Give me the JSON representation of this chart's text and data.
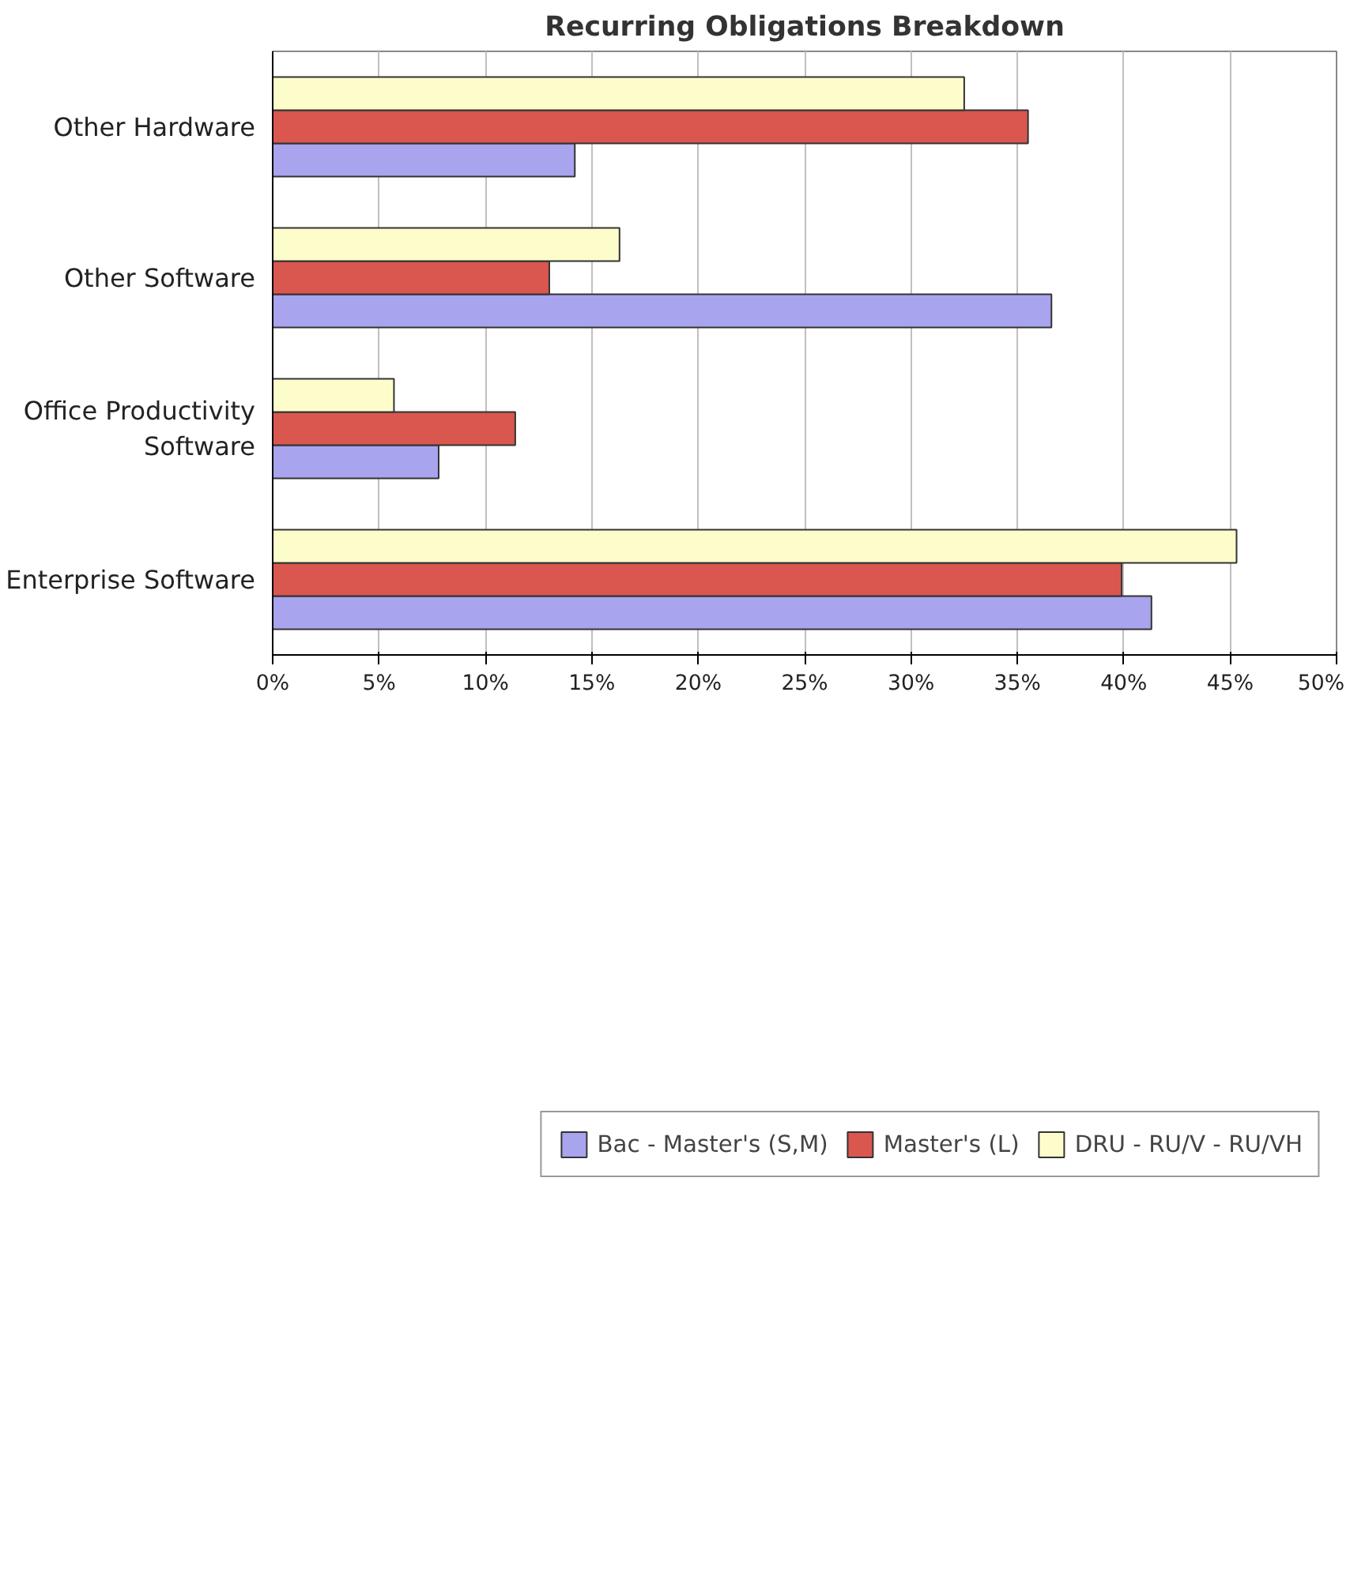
{
  "chart_data": {
    "type": "bar",
    "orientation": "horizontal",
    "title": "Recurring Obligations Breakdown",
    "categories": [
      "Other Hardware",
      "Other Software",
      "Office Productivity Software",
      "Enterprise Software"
    ],
    "series": [
      {
        "name": "Bac - Master's (S,M)",
        "color": "#a8a4ee",
        "values": [
          14.2,
          36.6,
          7.8,
          41.3
        ]
      },
      {
        "name": "Master's (L)",
        "color": "#d9574f",
        "values": [
          35.5,
          13.0,
          11.4,
          39.9
        ]
      },
      {
        "name": "DRU - RU/V - RU/VH",
        "color": "#fdfdcc",
        "values": [
          32.5,
          16.3,
          5.7,
          45.3
        ]
      }
    ],
    "xlim": [
      0,
      50
    ],
    "xticks": [
      {
        "value": 0,
        "label": "0%"
      },
      {
        "value": 5,
        "label": "5%"
      },
      {
        "value": 10,
        "label": "10%"
      },
      {
        "value": 15,
        "label": "15%"
      },
      {
        "value": 20,
        "label": "20%"
      },
      {
        "value": 25,
        "label": "25%"
      },
      {
        "value": 30,
        "label": "30%"
      },
      {
        "value": 35,
        "label": "35%"
      },
      {
        "value": 40,
        "label": "40%"
      },
      {
        "value": 45,
        "label": "45%"
      },
      {
        "value": 50,
        "label": "50%"
      }
    ],
    "grid": "x",
    "legend": "bottom"
  }
}
